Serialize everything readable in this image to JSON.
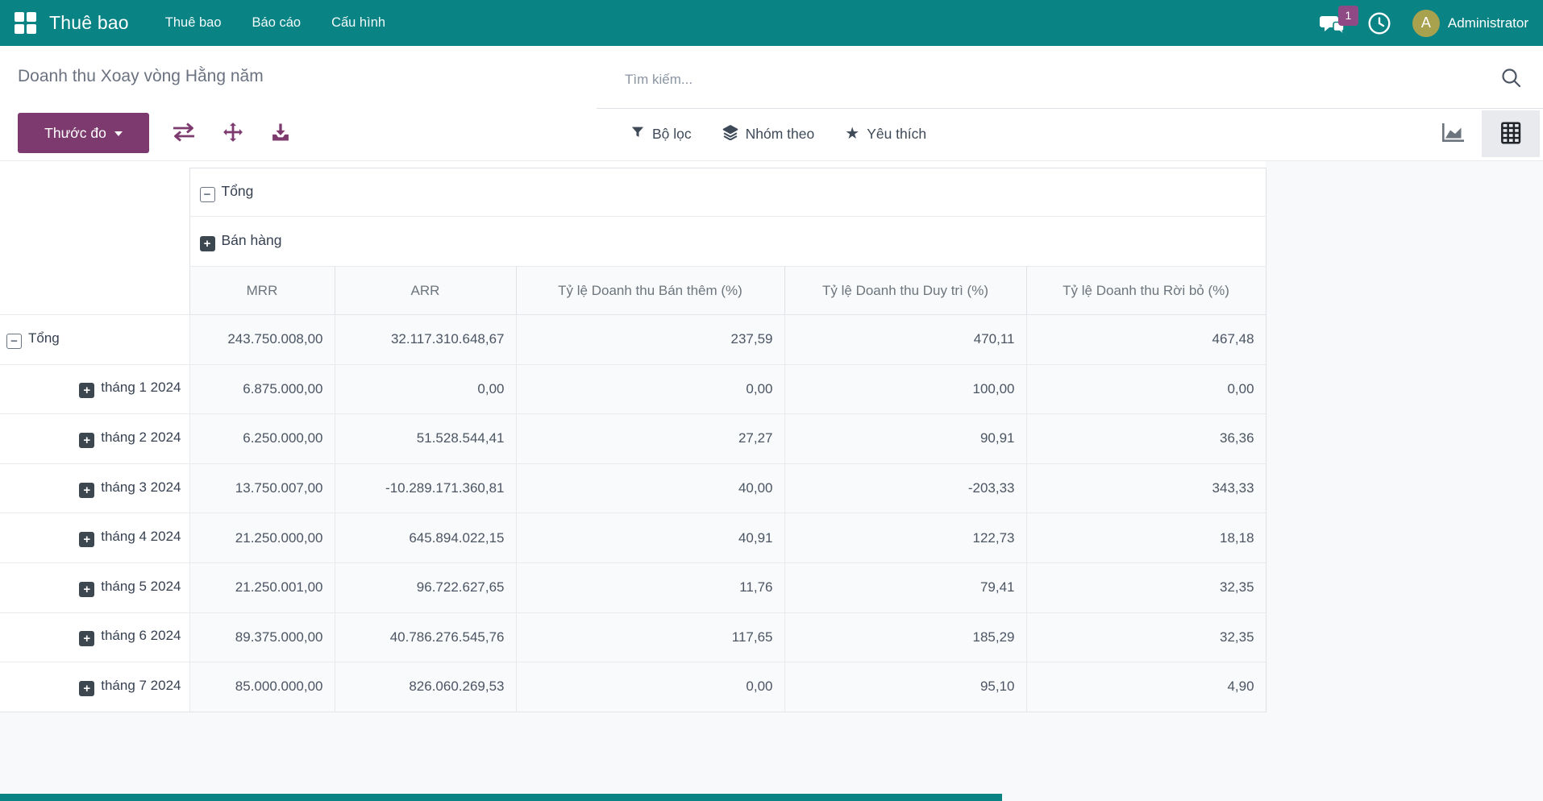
{
  "navbar": {
    "brand": "Thuê bao",
    "items": [
      {
        "label": "Thuê bao"
      },
      {
        "label": "Báo cáo"
      },
      {
        "label": "Cấu hình"
      }
    ],
    "messages_badge": "1",
    "user": {
      "initial": "A",
      "name": "Administrator"
    }
  },
  "control_panel": {
    "title": "Doanh thu Xoay vòng Hằng năm",
    "search_placeholder": "Tìm kiếm...",
    "measure_button_label": "Thước đo",
    "tool_icons": [
      "flip-axis-icon",
      "expand-all-icon",
      "download-icon"
    ],
    "filters": [
      {
        "icon": "funnel-icon",
        "label": "Bộ lọc"
      },
      {
        "icon": "layers-icon",
        "label": "Nhóm theo"
      },
      {
        "icon": "star-icon",
        "label": "Yêu thích"
      }
    ],
    "views": [
      {
        "icon": "area-chart-icon",
        "active": false
      },
      {
        "icon": "pivot-icon",
        "active": true
      }
    ]
  },
  "pivot": {
    "col_group_headers": [
      {
        "state": "expanded",
        "label": "Tổng"
      },
      {
        "state": "collapsed",
        "label": "Bán hàng"
      }
    ],
    "measures": [
      "MRR",
      "ARR",
      "Tỷ lệ Doanh thu Bán thêm (%)",
      "Tỷ lệ Doanh thu Duy trì (%)",
      "Tỷ lệ Doanh thu Rời bỏ (%)"
    ],
    "rows": [
      {
        "label": "Tổng",
        "level": 0,
        "expanded": true,
        "values": [
          "243.750.008,00",
          "32.117.310.648,67",
          "237,59",
          "470,11",
          "467,48"
        ]
      },
      {
        "label": "tháng 1 2024",
        "level": 1,
        "expanded": false,
        "values": [
          "6.875.000,00",
          "0,00",
          "0,00",
          "100,00",
          "0,00"
        ]
      },
      {
        "label": "tháng 2 2024",
        "level": 1,
        "expanded": false,
        "values": [
          "6.250.000,00",
          "51.528.544,41",
          "27,27",
          "90,91",
          "36,36"
        ]
      },
      {
        "label": "tháng 3 2024",
        "level": 1,
        "expanded": false,
        "values": [
          "13.750.007,00",
          "-10.289.171.360,81",
          "40,00",
          "-203,33",
          "343,33"
        ]
      },
      {
        "label": "tháng 4 2024",
        "level": 1,
        "expanded": false,
        "values": [
          "21.250.000,00",
          "645.894.022,15",
          "40,91",
          "122,73",
          "18,18"
        ]
      },
      {
        "label": "tháng 5 2024",
        "level": 1,
        "expanded": false,
        "values": [
          "21.250.001,00",
          "96.722.627,65",
          "11,76",
          "79,41",
          "32,35"
        ]
      },
      {
        "label": "tháng 6 2024",
        "level": 1,
        "expanded": false,
        "values": [
          "89.375.000,00",
          "40.786.276.545,76",
          "117,65",
          "185,29",
          "32,35"
        ]
      },
      {
        "label": "tháng 7 2024",
        "level": 1,
        "expanded": false,
        "values": [
          "85.000.000,00",
          "826.060.269,53",
          "0,00",
          "95,10",
          "4,90"
        ]
      }
    ]
  },
  "colors": {
    "navbar_teal": "#0a8385",
    "primary_purple": "#7d3a6e",
    "badge_purple": "#8f4a86",
    "avatar_olive": "#a8a24f",
    "active_view_bg": "#e8eaed",
    "numeric_cell_bg": "#f9fafb"
  }
}
